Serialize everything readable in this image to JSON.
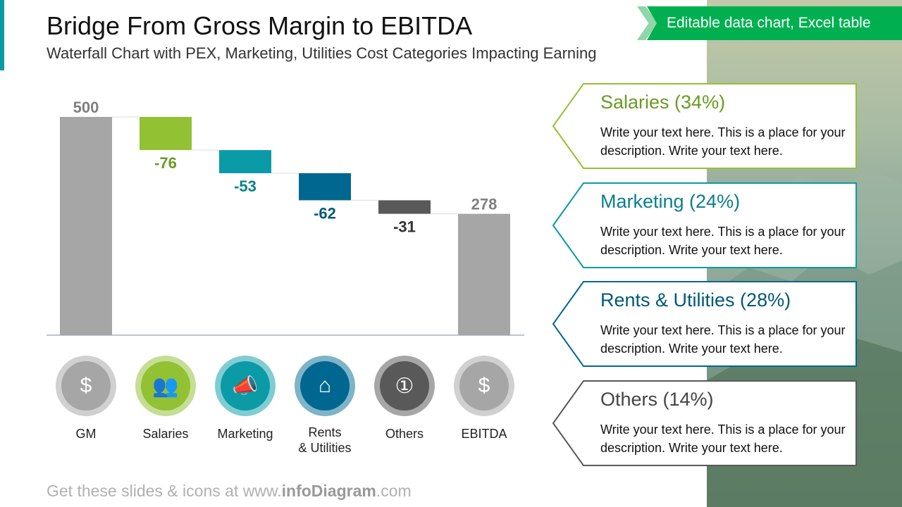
{
  "header": {
    "title": "Bridge From Gross Margin to EBITDA",
    "subtitle": "Waterfall Chart with PEX, Marketing, Utilities Cost Categories Impacting Earning",
    "badge": "Editable data chart, Excel table"
  },
  "chart_data": {
    "type": "bar",
    "subtype": "waterfall",
    "categories": [
      "GM",
      "Salaries",
      "Marketing",
      "Rents & Utilities",
      "Others",
      "EBITDA"
    ],
    "values": [
      500,
      -76,
      -53,
      -62,
      -31,
      278
    ],
    "data_labels": [
      "500",
      "-76",
      "-53",
      "-62",
      "-31",
      "278"
    ],
    "colors": [
      "#a6a6a6",
      "#92c133",
      "#0a9ba6",
      "#006890",
      "#595959",
      "#a6a6a6"
    ],
    "label_colors": [
      "#7f7f7f",
      "#6b9a23",
      "#0a7f89",
      "#00587a",
      "#333333",
      "#7f7f7f"
    ],
    "ylim": [
      0,
      500
    ],
    "grid": false
  },
  "icons": [
    {
      "name": "money-bag-icon",
      "label": "GM",
      "glyph": "$",
      "ring": "#d0d0d0",
      "fill": "#a6a6a6"
    },
    {
      "name": "people-money-icon",
      "label": "Salaries",
      "glyph": "👥",
      "ring": "#c5de95",
      "fill": "#92c133"
    },
    {
      "name": "megaphone-icon",
      "label": "Marketing",
      "glyph": "📣",
      "ring": "#7fcdd2",
      "fill": "#0a9ba6"
    },
    {
      "name": "house-faucet-icon",
      "label": "Rents\n& Utilities",
      "glyph": "⌂",
      "ring": "#7fb3c7",
      "fill": "#006890"
    },
    {
      "name": "banknote-icon",
      "label": "Others",
      "glyph": "①",
      "ring": "#a6a6a6",
      "fill": "#595959"
    },
    {
      "name": "money-bag-icon",
      "label": "EBITDA",
      "glyph": "$",
      "ring": "#d0d0d0",
      "fill": "#a6a6a6"
    }
  ],
  "cards": [
    {
      "title": "Salaries (34%)",
      "text": "Write your text here. This is a place for your description. Write your text here.",
      "color": "#92c133",
      "title_color": "#6b9a23"
    },
    {
      "title": "Marketing (24%)",
      "text": "Write your text here. This is a place for your description. Write your text here.",
      "color": "#0a9ba6",
      "title_color": "#0a7f89"
    },
    {
      "title": "Rents & Utilities (28%)",
      "text": "Write your text here. This is a place for your description. Write your text here.",
      "color": "#006890",
      "title_color": "#00587a"
    },
    {
      "title": "Others (14%)",
      "text": "Write your text here. This is a place for your description. Write your text here.",
      "color": "#595959",
      "title_color": "#444444"
    }
  ],
  "footer": {
    "prefix": "Get these slides & icons at www.",
    "brand": "infoDiagram",
    "suffix": ".com"
  }
}
